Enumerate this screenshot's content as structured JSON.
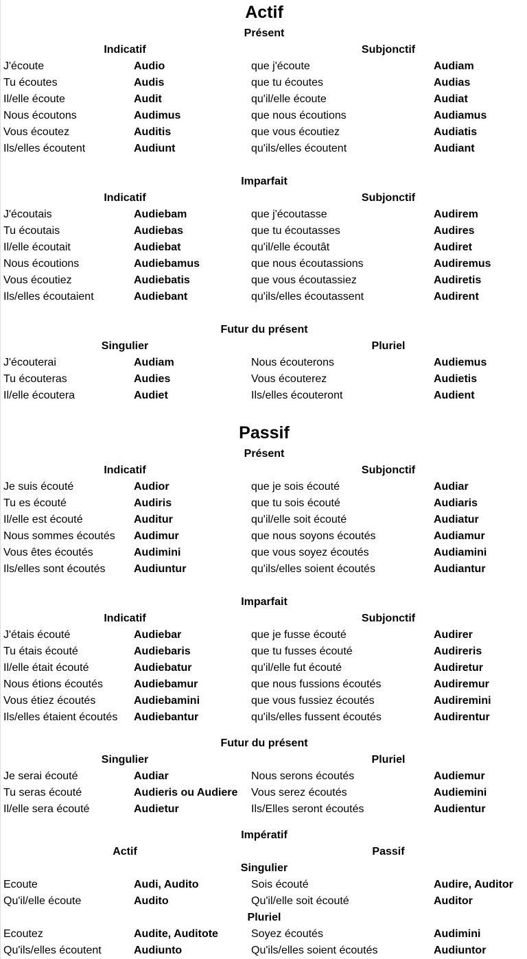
{
  "rows": [
    {
      "type": "title",
      "text": "Actif"
    },
    {
      "type": "section",
      "text": "Présent"
    },
    {
      "type": "heads",
      "cols": [
        "Indicatif",
        "Subjonctif"
      ]
    },
    {
      "type": "data",
      "cols": [
        "J'écoute",
        "Audio",
        "que j'écoute",
        "Audiam"
      ]
    },
    {
      "type": "data",
      "cols": [
        "Tu écoutes",
        "Audis",
        "que tu écoutes",
        "Audias"
      ]
    },
    {
      "type": "data",
      "cols": [
        "Il/elle écoute",
        "Audit",
        "qu'il/elle écoute",
        "Audiat"
      ]
    },
    {
      "type": "data",
      "cols": [
        "Nous écoutons",
        "Audimus",
        "que nous écoutions",
        "Audiamus"
      ]
    },
    {
      "type": "data",
      "cols": [
        "Vous écoutez",
        "Auditis",
        "que vous écoutiez",
        "Audiatis"
      ]
    },
    {
      "type": "data",
      "cols": [
        "Ils/elles écoutent",
        "Audiunt",
        "qu'ils/elles écoutent",
        "Audiant"
      ]
    },
    {
      "type": "blank"
    },
    {
      "type": "section",
      "text": "Imparfait"
    },
    {
      "type": "heads",
      "cols": [
        "Indicatif",
        "Subjonctif"
      ]
    },
    {
      "type": "data",
      "cols": [
        "J'écoutais",
        "Audiebam",
        "que j'écoutasse",
        "Audirem"
      ]
    },
    {
      "type": "data",
      "cols": [
        "Tu écoutais",
        "Audiebas",
        "que tu écoutasses",
        "Audires"
      ]
    },
    {
      "type": "data",
      "cols": [
        "Il/elle écoutait",
        "Audiebat",
        "qu'il/elle écoutât",
        "Audiret"
      ]
    },
    {
      "type": "data",
      "cols": [
        "Nous écoutions",
        "Audiebamus",
        "que nous écoutassions",
        "Audiremus"
      ]
    },
    {
      "type": "data",
      "cols": [
        "Vous écoutiez",
        "Audiebatis",
        "que vous écoutassiez",
        "Audiretis"
      ]
    },
    {
      "type": "data",
      "cols": [
        "Ils/elles écoutaient",
        "Audiebant",
        "qu'ils/elles écoutassent",
        "Audirent"
      ]
    },
    {
      "type": "blank"
    },
    {
      "type": "section",
      "text": "Futur du présent"
    },
    {
      "type": "heads",
      "cols": [
        "Singulier",
        "Pluriel"
      ]
    },
    {
      "type": "data",
      "cols": [
        "J'écouterai",
        "Audiam",
        "Nous écouterons",
        "Audiemus"
      ]
    },
    {
      "type": "data",
      "cols": [
        "Tu écouteras",
        "Audies",
        "Vous écouterez",
        "Audietis"
      ]
    },
    {
      "type": "data",
      "cols": [
        "Il/elle écoutera",
        "Audiet",
        "Ils/elles écouteront",
        "Audient"
      ]
    },
    {
      "type": "blank"
    },
    {
      "type": "title",
      "text": "Passif"
    },
    {
      "type": "section",
      "text": "Présent"
    },
    {
      "type": "heads",
      "cols": [
        "Indicatif",
        "Subjonctif"
      ]
    },
    {
      "type": "data",
      "cols": [
        "Je suis écouté",
        "Audior",
        "que je sois écouté",
        "Audiar"
      ]
    },
    {
      "type": "data",
      "cols": [
        "Tu es écouté",
        "Audiris",
        "que tu sois écouté",
        "Audiaris"
      ]
    },
    {
      "type": "data",
      "cols": [
        "Il/elle est écouté",
        "Auditur",
        "qu'il/elle soit écouté",
        "Audiatur"
      ]
    },
    {
      "type": "data",
      "cols": [
        "Nous sommes écoutés",
        "Audimur",
        "que nous soyons écoutés",
        "Audiamur"
      ]
    },
    {
      "type": "data",
      "cols": [
        "Vous êtes écoutés",
        "Audimini",
        "que vous soyez écoutés",
        "Audiamini"
      ]
    },
    {
      "type": "data",
      "cols": [
        "Ils/elles sont écoutés",
        "Audiuntur",
        "qu'ils/elles soient écoutés",
        "Audiantur"
      ]
    },
    {
      "type": "blank"
    },
    {
      "type": "section",
      "text": "Imparfait"
    },
    {
      "type": "heads",
      "cols": [
        "Indicatif",
        "Subjonctif"
      ]
    },
    {
      "type": "data",
      "cols": [
        "J'étais écouté",
        "Audiebar",
        "que je fusse écouté",
        "Audirer"
      ]
    },
    {
      "type": "data",
      "cols": [
        "Tu étais écouté",
        "Audiebaris",
        "que tu fusses écouté",
        "Audireris"
      ]
    },
    {
      "type": "data",
      "cols": [
        "Il/elle était écouté",
        "Audiebatur",
        "qu'il/elle fut écouté",
        "Audiretur"
      ]
    },
    {
      "type": "data",
      "cols": [
        "Nous étions écoutés",
        "Audiebamur",
        "que nous fussions écoutés",
        "Audiremur"
      ]
    },
    {
      "type": "data",
      "cols": [
        "Vous étiez écoutés",
        "Audiebamini",
        "que vous fussiez écoutés",
        "Audiremini"
      ]
    },
    {
      "type": "data",
      "cols": [
        "Ils/elles étaient écoutés",
        "Audiebantur",
        "qu'ils/elles fussent écoutés",
        "Audirentur"
      ]
    },
    {
      "type": "blank-sm"
    },
    {
      "type": "section",
      "text": "Futur du présent"
    },
    {
      "type": "heads",
      "cols": [
        "Singulier",
        "Pluriel"
      ]
    },
    {
      "type": "data",
      "cols": [
        "Je serai écouté",
        "Audiar",
        "Nous serons écoutés",
        "Audiemur"
      ]
    },
    {
      "type": "data",
      "cols": [
        "Tu seras écouté",
        "Audieris ou Audiere",
        "Vous serez écoutés",
        "Audiemini"
      ]
    },
    {
      "type": "data",
      "cols": [
        "Il/elle sera écouté",
        "Audietur",
        "Ils/Elles seront écoutés",
        "Audientur"
      ]
    },
    {
      "type": "blank-sm"
    },
    {
      "type": "section",
      "text": "Impératif"
    },
    {
      "type": "heads",
      "cols": [
        "Actif",
        "Passif"
      ]
    },
    {
      "type": "section",
      "text": "Singulier"
    },
    {
      "type": "data",
      "cols": [
        "Ecoute",
        "Audi, Audito",
        "Sois écouté",
        "Audire, Auditor"
      ]
    },
    {
      "type": "data",
      "cols": [
        "Qu'il/elle écoute",
        "Audito",
        "Qu'il/elle soit écouté",
        "Auditor"
      ]
    },
    {
      "type": "section",
      "text": "Pluriel"
    },
    {
      "type": "data",
      "cols": [
        "Ecoutez",
        "Audite, Auditote",
        "Soyez écoutés",
        "Audimini"
      ]
    },
    {
      "type": "data",
      "cols": [
        "Qu'ils/elles écoutent",
        "Audiunto",
        "Qu'ils/elles soient écoutés",
        "Audiuntor"
      ]
    }
  ]
}
